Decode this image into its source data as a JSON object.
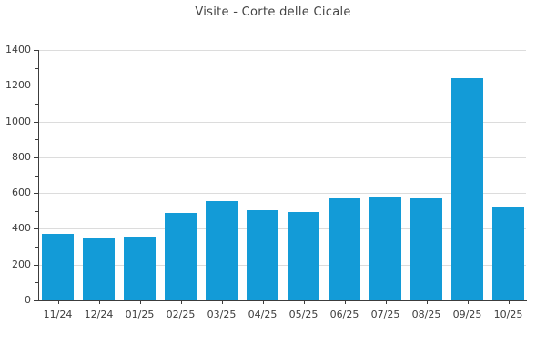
{
  "chart_data": {
    "type": "bar",
    "title": "Visite - Corte delle Cicale",
    "categories": [
      "11/24",
      "12/24",
      "01/25",
      "02/25",
      "03/25",
      "04/25",
      "05/25",
      "06/25",
      "07/25",
      "08/25",
      "09/25",
      "10/25"
    ],
    "values": [
      370,
      350,
      355,
      490,
      555,
      505,
      495,
      570,
      575,
      570,
      1240,
      520
    ],
    "xlabel": "",
    "ylabel": "",
    "ylim": [
      0,
      1400
    ],
    "yticks": [
      0,
      200,
      400,
      600,
      800,
      1000,
      1200,
      1400
    ],
    "y_minor_step": 100,
    "grid": true,
    "legend_position": "none",
    "bar_color": "#139BD7",
    "grid_color": "#DCDCDC",
    "axis_color": "#3C3C3C",
    "text_color": "#3D3D3D"
  }
}
